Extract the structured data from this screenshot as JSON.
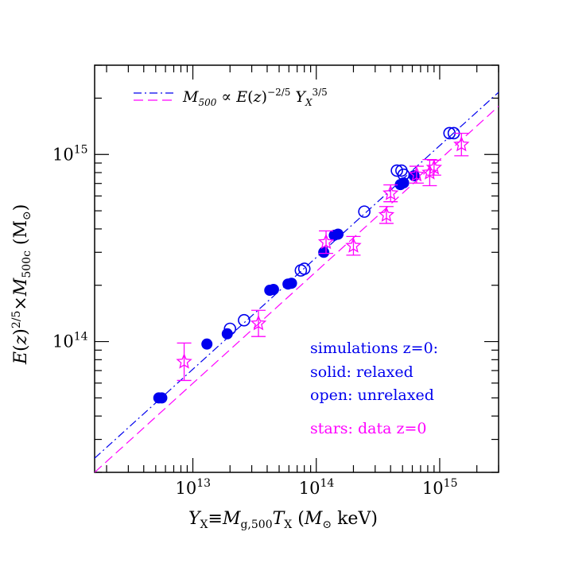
{
  "chart_data": {
    "type": "scatter",
    "xscale": "log",
    "yscale": "log",
    "xlim": [
      1600000000000.0,
      3000000000000000.0
    ],
    "ylim": [
      20000000000000.0,
      3000000000000000.0
    ],
    "grid": false,
    "xlabel": "Y_X≡M_g,500T_X (M_⊙ keV)",
    "ylabel": "E(z)^2/5×M_500c (M_⊙)",
    "xtick_labels": [
      {
        "value": 10000000000000.0,
        "mantissa": "10",
        "exp": "13"
      },
      {
        "value": 100000000000000.0,
        "mantissa": "10",
        "exp": "14"
      },
      {
        "value": 1000000000000000.0,
        "mantissa": "10",
        "exp": "15"
      }
    ],
    "ytick_labels": [
      {
        "value": 100000000000000.0,
        "mantissa": "10",
        "exp": "14"
      },
      {
        "value": 1000000000000000.0,
        "mantissa": "10",
        "exp": "15"
      }
    ],
    "legend": {
      "placement": "top-left",
      "formula": "M500 ∝ E(z)^-2/5 YX^3/5"
    },
    "lines": [
      {
        "style": "dash-dot",
        "color": "#0000ee",
        "x": [
          1600000000000.0,
          3000000000000000.0
        ],
        "y": [
          23800000000000.0,
          2150000000000000.0
        ]
      },
      {
        "style": "dashed",
        "color": "#ff00ff",
        "x": [
          1600000000000.0,
          3000000000000000.0
        ],
        "y": [
          20000000000000.0,
          1810000000000000.0
        ]
      }
    ],
    "series": [
      {
        "marker": "filled-circle",
        "color": "#0000ee",
        "points": [
          [
            5300000000000.0,
            50000000000000.0
          ],
          [
            5600000000000.0,
            50000000000000.0
          ],
          [
            13000000000000.0,
            97000000000000.0
          ],
          [
            19000000000000.0,
            110000000000000.0
          ],
          [
            42000000000000.0,
            188000000000000.0
          ],
          [
            45000000000000.0,
            190000000000000.0
          ],
          [
            59000000000000.0,
            203000000000000.0
          ],
          [
            63000000000000.0,
            205000000000000.0
          ],
          [
            115000000000000.0,
            300000000000000.0
          ],
          [
            140000000000000.0,
            370000000000000.0
          ],
          [
            150000000000000.0,
            375000000000000.0
          ],
          [
            480000000000000.0,
            690000000000000.0
          ],
          [
            510000000000000.0,
            705000000000000.0
          ],
          [
            620000000000000.0,
            770000000000000.0
          ]
        ]
      },
      {
        "marker": "open-circle",
        "color": "#0000ee",
        "points": [
          [
            20000000000000.0,
            117000000000000.0
          ],
          [
            26000000000000.0,
            130000000000000.0
          ],
          [
            75000000000000.0,
            240000000000000.0
          ],
          [
            80000000000000.0,
            245000000000000.0
          ],
          [
            245000000000000.0,
            495000000000000.0
          ],
          [
            450000000000000.0,
            820000000000000.0
          ],
          [
            490000000000000.0,
            820000000000000.0
          ],
          [
            510000000000000.0,
            780000000000000.0
          ],
          [
            1200000000000000.0,
            1300000000000000.0
          ],
          [
            1300000000000000.0,
            1300000000000000.0
          ]
        ]
      },
      {
        "marker": "star",
        "color": "#ff00ff",
        "points": [
          [
            8500000000000.0,
            78000000000000.0,
            0.1
          ],
          [
            34000000000000.0,
            125000000000000.0,
            0.07
          ],
          [
            120000000000000.0,
            340000000000000.0,
            0.06
          ],
          [
            200000000000000.0,
            325000000000000.0,
            0.05
          ],
          [
            370000000000000.0,
            475000000000000.0,
            0.045
          ],
          [
            400000000000000.0,
            620000000000000.0,
            0.045
          ],
          [
            650000000000000.0,
            780000000000000.0,
            0.045
          ],
          [
            830000000000000.0,
            800000000000000.0,
            0.07
          ],
          [
            900000000000000.0,
            850000000000000.0,
            0.04
          ],
          [
            1500000000000000.0,
            1130000000000000.0,
            0.06
          ]
        ]
      }
    ],
    "annotations": [
      {
        "text": "simulations z=0:",
        "color": "#0000ee"
      },
      {
        "text": "solid: relaxed",
        "color": "#0000ee"
      },
      {
        "text": "open: unrelaxed",
        "color": "#0000ee"
      },
      {
        "text": "stars: data z=0",
        "color": "#ff00ff"
      }
    ]
  }
}
